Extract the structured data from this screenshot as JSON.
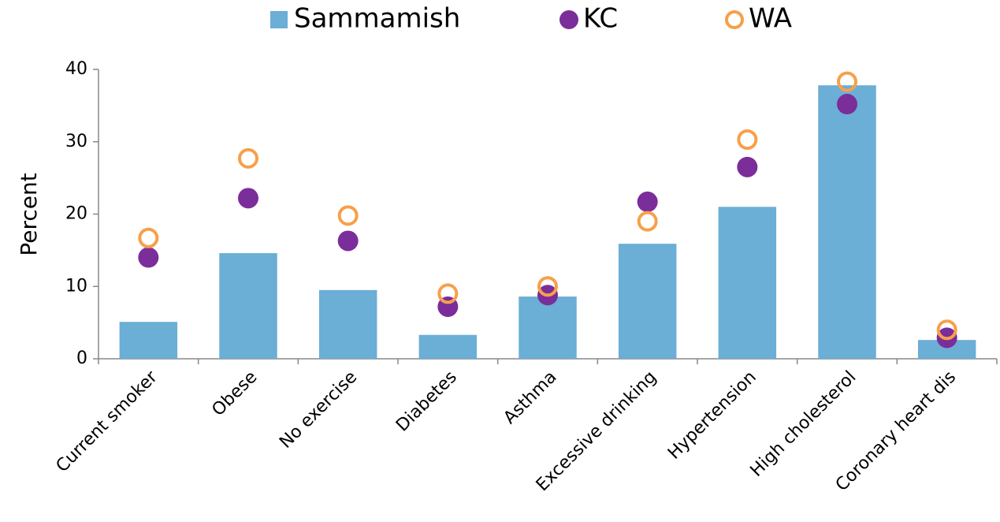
{
  "chart_data": {
    "type": "bar",
    "y_label": "Percent",
    "categories": [
      "Current smoker",
      "Obese",
      "No exercise",
      "Diabetes",
      "Asthma",
      "Excessive drinking",
      "Hypertension",
      "High cholesterol",
      "Coronary heart dis"
    ],
    "series": [
      {
        "name": "Sammamish",
        "type": "bar",
        "color": "#6baed6",
        "values": [
          5.1,
          14.6,
          9.5,
          3.3,
          8.6,
          15.9,
          21.0,
          37.8,
          2.6
        ]
      },
      {
        "name": "KC",
        "type": "scatter",
        "color": "#7b2d9a",
        "hollow": false,
        "values": [
          14.0,
          22.2,
          16.3,
          7.2,
          8.8,
          21.7,
          26.5,
          35.2,
          2.9
        ]
      },
      {
        "name": "WA",
        "type": "scatter",
        "color": "#f7a04a",
        "hollow": true,
        "values": [
          16.7,
          27.7,
          19.8,
          9.0,
          10.0,
          19.0,
          30.3,
          38.3,
          4.0
        ]
      }
    ],
    "ylim": [
      0,
      40
    ],
    "yticks": [
      0,
      10,
      20,
      30,
      40
    ],
    "grid": false,
    "legend": "top"
  }
}
